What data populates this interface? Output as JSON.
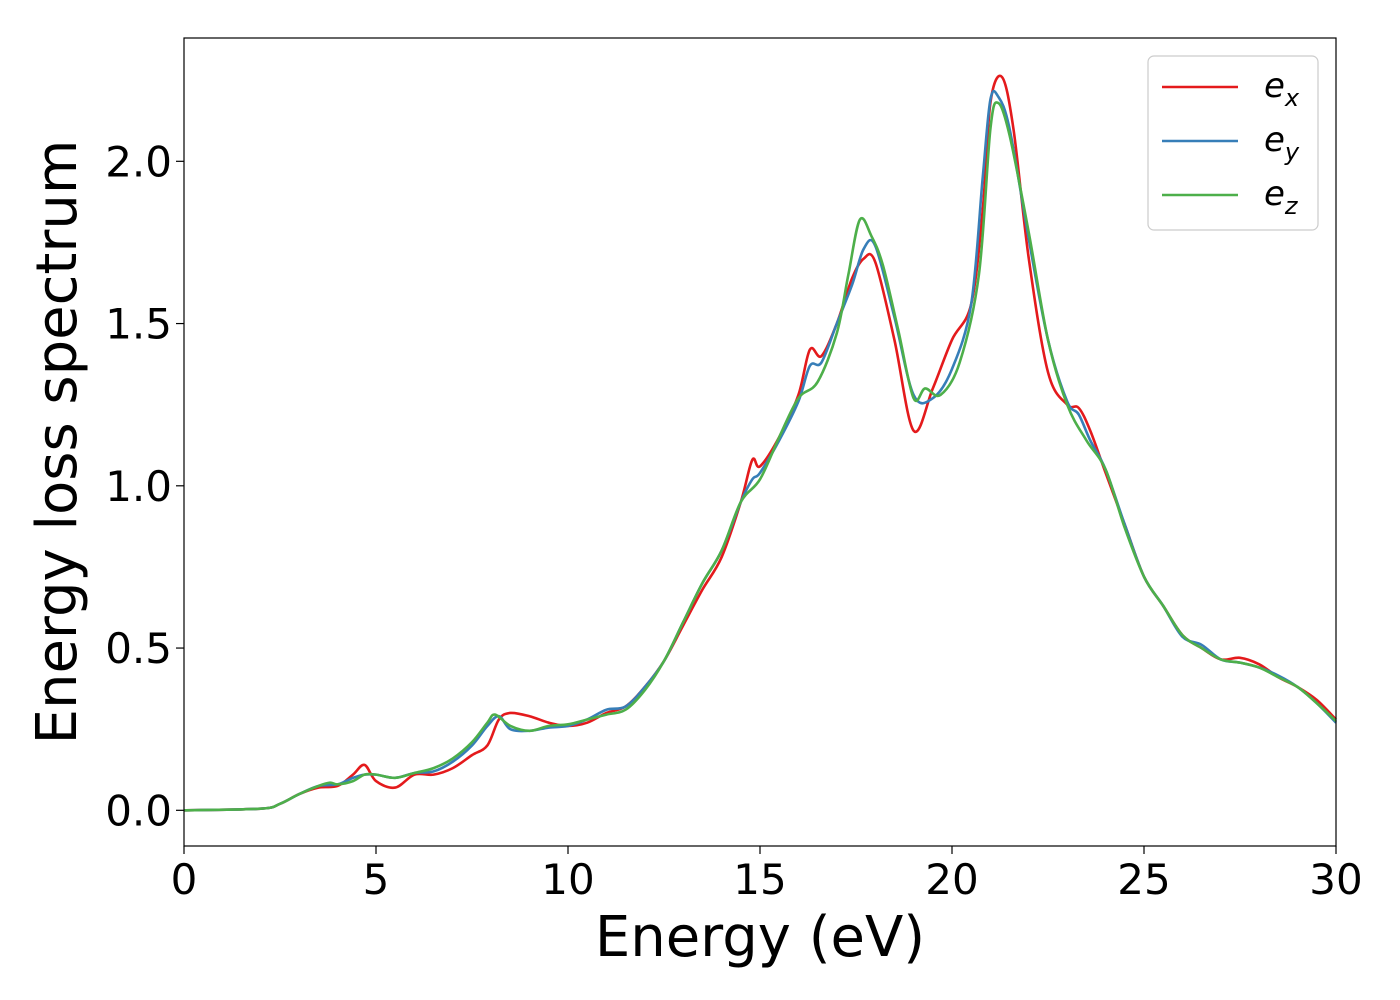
{
  "chart_data": {
    "type": "line",
    "title": "",
    "xlabel": "Energy (eV)",
    "ylabel": "Energy loss spectrum",
    "xlim": [
      0,
      30
    ],
    "ylim": [
      -0.11,
      2.38
    ],
    "xticks": [
      0,
      5,
      10,
      15,
      20,
      25,
      30
    ],
    "xtick_labels": [
      "0",
      "5",
      "10",
      "15",
      "20",
      "25",
      "30"
    ],
    "yticks": [
      0.0,
      0.5,
      1.0,
      1.5,
      2.0
    ],
    "ytick_labels": [
      "0.0",
      "0.5",
      "1.0",
      "1.5",
      "2.0"
    ],
    "grid": false,
    "legend_position": "top-right",
    "series": [
      {
        "name": "e",
        "subscript": "x",
        "color": "#e41a1c",
        "x": [
          0,
          2,
          2.5,
          3,
          3.5,
          4,
          4.4,
          4.7,
          5,
          5.5,
          6,
          6.5,
          7,
          7.5,
          7.9,
          8.2,
          8.5,
          9,
          9.5,
          10,
          10.5,
          11,
          11.5,
          12,
          12.5,
          13,
          13.5,
          14,
          14.5,
          14.8,
          15,
          15.5,
          16,
          16.3,
          16.6,
          17,
          17.4,
          17.7,
          18,
          18.5,
          19,
          19.5,
          20,
          20.5,
          20.8,
          21,
          21.3,
          21.6,
          22,
          22.5,
          23,
          23.3,
          23.6,
          24,
          24.5,
          25,
          25.5,
          26,
          26.5,
          27,
          27.5,
          28,
          28.5,
          29,
          29.5,
          30
        ],
        "y": [
          0,
          0.005,
          0.02,
          0.05,
          0.07,
          0.075,
          0.11,
          0.14,
          0.09,
          0.07,
          0.11,
          0.11,
          0.13,
          0.17,
          0.2,
          0.28,
          0.3,
          0.29,
          0.27,
          0.26,
          0.27,
          0.3,
          0.32,
          0.38,
          0.46,
          0.57,
          0.68,
          0.78,
          0.95,
          1.08,
          1.06,
          1.15,
          1.28,
          1.42,
          1.4,
          1.5,
          1.64,
          1.7,
          1.69,
          1.45,
          1.17,
          1.3,
          1.45,
          1.56,
          1.85,
          2.18,
          2.26,
          2.1,
          1.7,
          1.35,
          1.25,
          1.24,
          1.17,
          1.04,
          0.88,
          0.72,
          0.63,
          0.54,
          0.5,
          0.465,
          0.47,
          0.45,
          0.41,
          0.38,
          0.34,
          0.28
        ]
      },
      {
        "name": "e",
        "subscript": "y",
        "color": "#377eb8",
        "x": [
          0,
          2,
          2.5,
          3,
          3.5,
          4,
          4.4,
          4.7,
          5,
          5.5,
          6,
          6.5,
          7,
          7.5,
          7.9,
          8.2,
          8.5,
          9,
          9.5,
          10,
          10.5,
          11,
          11.5,
          12,
          12.5,
          13,
          13.5,
          14,
          14.5,
          14.8,
          15,
          15.5,
          16,
          16.3,
          16.6,
          17,
          17.4,
          17.7,
          18,
          18.5,
          19,
          19.5,
          20,
          20.5,
          20.8,
          21,
          21.2,
          21.5,
          22,
          22.5,
          23,
          23.3,
          23.6,
          24,
          24.5,
          25,
          25.5,
          26,
          26.5,
          27,
          27.5,
          28,
          28.5,
          29,
          29.5,
          30
        ],
        "y": [
          0,
          0.005,
          0.02,
          0.05,
          0.075,
          0.08,
          0.1,
          0.11,
          0.11,
          0.1,
          0.115,
          0.12,
          0.15,
          0.2,
          0.26,
          0.29,
          0.25,
          0.245,
          0.255,
          0.26,
          0.28,
          0.31,
          0.32,
          0.38,
          0.46,
          0.58,
          0.7,
          0.8,
          0.95,
          1.02,
          1.04,
          1.14,
          1.26,
          1.37,
          1.38,
          1.5,
          1.62,
          1.73,
          1.74,
          1.52,
          1.28,
          1.27,
          1.36,
          1.56,
          1.95,
          2.19,
          2.2,
          2.1,
          1.76,
          1.45,
          1.26,
          1.22,
          1.14,
          1.05,
          0.88,
          0.72,
          0.63,
          0.535,
          0.51,
          0.465,
          0.455,
          0.44,
          0.415,
          0.38,
          0.33,
          0.27
        ]
      },
      {
        "name": "e",
        "subscript": "z",
        "color": "#4daf4a",
        "x": [
          0,
          2,
          2.5,
          3,
          3.5,
          3.8,
          4,
          4.4,
          4.7,
          5,
          5.5,
          6,
          6.5,
          7,
          7.5,
          7.9,
          8.1,
          8.5,
          9,
          9.5,
          10,
          10.5,
          11,
          11.5,
          12,
          12.5,
          13,
          13.5,
          14,
          14.5,
          15,
          15.5,
          16,
          16.5,
          17,
          17.3,
          17.6,
          17.9,
          18.2,
          18.6,
          19,
          19.3,
          19.7,
          20.2,
          20.7,
          21,
          21.2,
          21.5,
          22,
          22.5,
          23,
          23.5,
          24,
          24.5,
          25,
          25.5,
          26,
          26.5,
          27,
          27.5,
          28,
          28.5,
          29,
          29.5,
          30
        ],
        "y": [
          0,
          0.005,
          0.02,
          0.05,
          0.075,
          0.085,
          0.08,
          0.09,
          0.11,
          0.11,
          0.1,
          0.115,
          0.13,
          0.16,
          0.21,
          0.27,
          0.295,
          0.26,
          0.245,
          0.26,
          0.265,
          0.28,
          0.295,
          0.31,
          0.37,
          0.46,
          0.58,
          0.7,
          0.8,
          0.95,
          1.02,
          1.15,
          1.27,
          1.32,
          1.47,
          1.65,
          1.82,
          1.77,
          1.68,
          1.48,
          1.27,
          1.3,
          1.28,
          1.38,
          1.65,
          2.1,
          2.18,
          2.08,
          1.78,
          1.45,
          1.25,
          1.14,
          1.05,
          0.87,
          0.72,
          0.63,
          0.54,
          0.5,
          0.465,
          0.455,
          0.44,
          0.41,
          0.38,
          0.33,
          0.275
        ]
      }
    ]
  }
}
